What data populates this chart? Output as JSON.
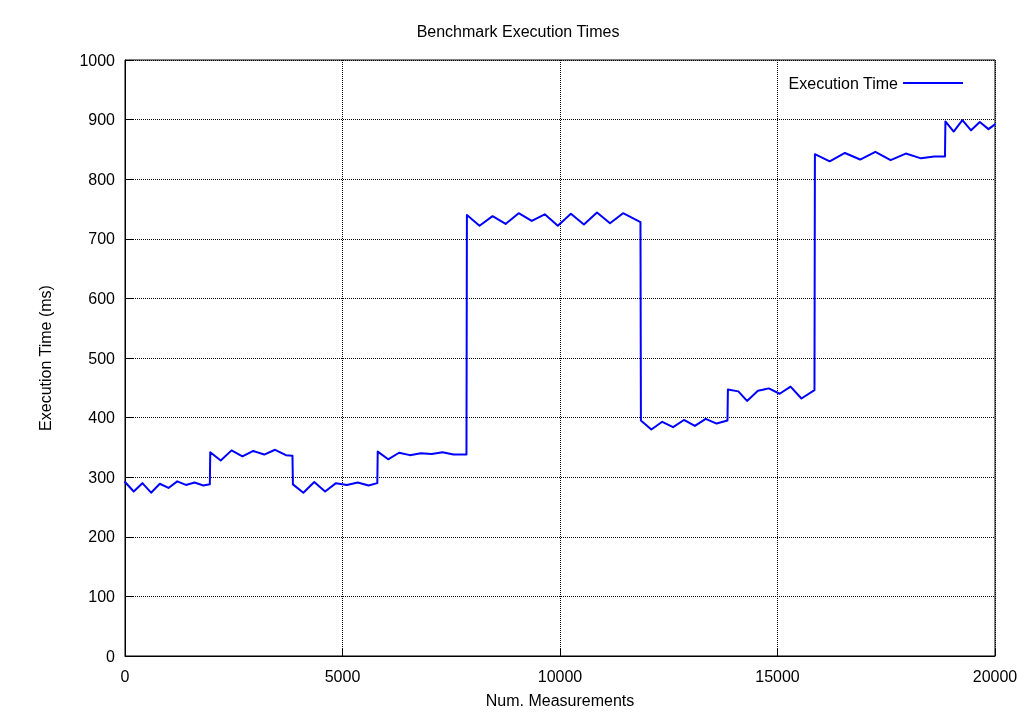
{
  "chart_data": {
    "type": "line",
    "title": "Benchmark Execution Times",
    "xlabel": "Num. Measurements",
    "ylabel": "Execution Time (ms)",
    "xlim": [
      0,
      20000
    ],
    "xticks": [
      0,
      5000,
      10000,
      15000,
      20000
    ],
    "ylim": [
      0,
      1000
    ],
    "yticks": [
      0,
      100,
      200,
      300,
      400,
      500,
      600,
      700,
      800,
      900,
      1000
    ],
    "grid": true,
    "legend": "top right",
    "marker": "none",
    "line_style": "solid",
    "series": [
      {
        "name": "Execution Time",
        "color": "#0000ff",
        "x": [
          0,
          200,
          400,
          600,
          800,
          1000,
          1200,
          1400,
          1600,
          1800,
          1950,
          1960,
          2200,
          2450,
          2700,
          2950,
          3200,
          3450,
          3700,
          3850,
          3860,
          4100,
          4350,
          4600,
          4850,
          5100,
          5350,
          5600,
          5800,
          5810,
          6050,
          6300,
          6550,
          6800,
          7050,
          7300,
          7550,
          7850,
          7860,
          8150,
          8450,
          8750,
          9050,
          9350,
          9650,
          9950,
          10250,
          10550,
          10850,
          11150,
          11450,
          11850,
          11860,
          12100,
          12350,
          12600,
          12850,
          13100,
          13350,
          13600,
          13850,
          13860,
          14100,
          14300,
          14550,
          14800,
          15050,
          15300,
          15550,
          15850,
          15860,
          16200,
          16550,
          16900,
          17250,
          17600,
          17950,
          18300,
          18600,
          18850,
          18860,
          19050,
          19250,
          19450,
          19650,
          19850,
          20000
        ],
        "values": [
          292,
          276,
          290,
          274,
          289,
          282,
          293,
          287,
          291,
          286,
          288,
          342,
          328,
          345,
          335,
          344,
          338,
          346,
          337,
          336,
          288,
          274,
          292,
          276,
          290,
          287,
          291,
          286,
          290,
          343,
          330,
          341,
          337,
          340,
          339,
          342,
          338,
          338,
          740,
          722,
          738,
          725,
          743,
          730,
          741,
          722,
          742,
          724,
          744,
          726,
          743,
          728,
          395,
          380,
          393,
          384,
          396,
          386,
          398,
          390,
          395,
          447,
          444,
          428,
          445,
          449,
          440,
          452,
          432,
          446,
          842,
          830,
          844,
          833,
          846,
          832,
          843,
          835,
          838,
          838,
          897,
          880,
          899,
          882,
          896,
          884,
          892
        ]
      }
    ]
  }
}
